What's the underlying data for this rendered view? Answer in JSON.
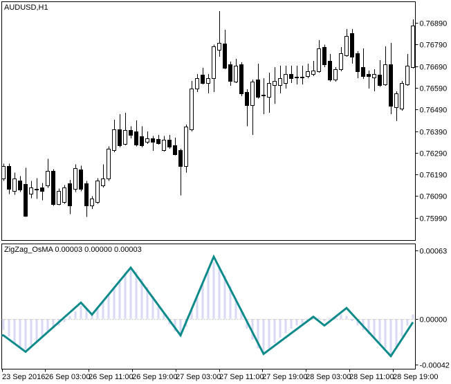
{
  "window": {
    "symbol_label": "AUDUSD,H1",
    "indicator_label": "ZigZag_OsMA 0.00003 0.00000 0.00003"
  },
  "colors": {
    "background": "#ffffff",
    "pane_border": "#000000",
    "bull_candle_fill": "#ffffff",
    "bear_candle_fill": "#000000",
    "candle_outline": "#000000",
    "wick": "#000000",
    "zigzag_line": "#0d8a8a",
    "histogram_bar": "#d8daf3",
    "zero_dashed_line": "#c6c6c6",
    "axis_text": "#000000"
  },
  "chart_data": [
    {
      "type": "candlestick",
      "title": "AUDUSD,H1",
      "symbol": "AUDUSD",
      "timeframe": "H1",
      "legend_position": "top-left",
      "grid": false,
      "y_axis_side": "right",
      "y_ticks": [
        "0.76890",
        "0.76790",
        "0.76690",
        "0.76590",
        "0.76490",
        "0.76390",
        "0.76290",
        "0.76190",
        "0.76090",
        "0.75990"
      ],
      "ylim": [
        0.75885,
        0.76988
      ],
      "x_tick_labels": [
        "23 Sep 2016",
        "26 Sep 03:00",
        "26 Sep 11:00",
        "26 Sep 19:00",
        "27 Sep 03:00",
        "27 Sep 11:00",
        "27 Sep 19:00",
        "28 Sep 03:00",
        "28 Sep 11:00",
        "28 Sep 19:00"
      ],
      "candles_ohlc": [
        [
          0.76172,
          0.7624,
          0.7616,
          0.7623
        ],
        [
          0.7623,
          0.7624,
          0.761,
          0.76124
        ],
        [
          0.76112,
          0.76198,
          0.76096,
          0.76172
        ],
        [
          0.7616,
          0.76182,
          0.76109,
          0.76121
        ],
        [
          0.76144,
          0.7622,
          0.75994,
          0.76
        ],
        [
          0.76102,
          0.7616,
          0.7608,
          0.76128
        ],
        [
          0.76121,
          0.76172,
          0.76077,
          0.76124
        ],
        [
          0.76128,
          0.7615,
          0.7607,
          0.76112
        ],
        [
          0.7614,
          0.76262,
          0.76128,
          0.76207
        ],
        [
          0.76207,
          0.76214,
          0.76045,
          0.76054
        ],
        [
          0.76054,
          0.76124,
          0.76048,
          0.76112
        ],
        [
          0.76061,
          0.7614,
          0.76054,
          0.76128
        ],
        [
          0.7615,
          0.76165,
          0.76006,
          0.76048
        ],
        [
          0.76124,
          0.76236,
          0.76109,
          0.7622
        ],
        [
          0.76214,
          0.7623,
          0.76112,
          0.76124
        ],
        [
          0.7615,
          0.7616,
          0.75994,
          0.76045
        ],
        [
          0.76048,
          0.7609,
          0.7603,
          0.76077
        ],
        [
          0.76064,
          0.76172,
          0.76054,
          0.7616
        ],
        [
          0.7614,
          0.76236,
          0.7613,
          0.76172
        ],
        [
          0.76172,
          0.7632,
          0.7616,
          0.76309
        ],
        [
          0.76303,
          0.76443,
          0.76293,
          0.76399
        ],
        [
          0.76399,
          0.76469,
          0.76315,
          0.76325
        ],
        [
          0.76331,
          0.76475,
          0.76325,
          0.76396
        ],
        [
          0.76396,
          0.76412,
          0.76357,
          0.76373
        ],
        [
          0.76389,
          0.7644,
          0.7632,
          0.76328
        ],
        [
          0.76367,
          0.76412,
          0.76315,
          0.76325
        ],
        [
          0.76341,
          0.76389,
          0.76331,
          0.76357
        ],
        [
          0.76357,
          0.76367,
          0.76299,
          0.76341
        ],
        [
          0.76354,
          0.76373,
          0.76328,
          0.76335
        ],
        [
          0.76303,
          0.76367,
          0.76296,
          0.76351
        ],
        [
          0.76351,
          0.76373,
          0.76309,
          0.76318
        ],
        [
          0.76325,
          0.7636,
          0.76278,
          0.76284
        ],
        [
          0.76303,
          0.76309,
          0.76093,
          0.7623
        ],
        [
          0.7623,
          0.76421,
          0.76198,
          0.76412
        ],
        [
          0.76399,
          0.76622,
          0.76389,
          0.76587
        ],
        [
          0.76587,
          0.76654,
          0.76571,
          0.76635
        ],
        [
          0.76651,
          0.76683,
          0.76606,
          0.76612
        ],
        [
          0.76612,
          0.76654,
          0.76565,
          0.76635
        ],
        [
          0.76635,
          0.7679,
          0.76571,
          0.76782
        ],
        [
          0.76766,
          0.76945,
          0.76734,
          0.76797
        ],
        [
          0.76794,
          0.76858,
          0.76676,
          0.76683
        ],
        [
          0.76698,
          0.76712,
          0.766,
          0.76622
        ],
        [
          0.76619,
          0.76724,
          0.76612,
          0.76692
        ],
        [
          0.76698,
          0.76708,
          0.76552,
          0.76565
        ],
        [
          0.76571,
          0.76584,
          0.76412,
          0.7651
        ],
        [
          0.7651,
          0.76628,
          0.76373,
          0.76619
        ],
        [
          0.76628,
          0.76702,
          0.7654,
          0.76549
        ],
        [
          0.76555,
          0.76635,
          0.76469,
          0.76558
        ],
        [
          0.76549,
          0.7666,
          0.76475,
          0.76612
        ],
        [
          0.76603,
          0.76686,
          0.76516,
          0.76622
        ],
        [
          0.76603,
          0.76692,
          0.76565,
          0.76635
        ],
        [
          0.76612,
          0.76692,
          0.76587,
          0.76654
        ],
        [
          0.76654,
          0.76692,
          0.76612,
          0.76635
        ],
        [
          0.76641,
          0.76692,
          0.76606,
          0.76638
        ],
        [
          0.76638,
          0.76692,
          0.76606,
          0.76641
        ],
        [
          0.76644,
          0.76702,
          0.76635,
          0.76667
        ],
        [
          0.76654,
          0.76715,
          0.76644,
          0.7667
        ],
        [
          0.76667,
          0.7681,
          0.7666,
          0.76772
        ],
        [
          0.76778,
          0.7679,
          0.76686,
          0.76698
        ],
        [
          0.76715,
          0.76746,
          0.76619,
          0.76628
        ],
        [
          0.76628,
          0.76686,
          0.76619,
          0.76676
        ],
        [
          0.76676,
          0.76778,
          0.76667,
          0.7675
        ],
        [
          0.7674,
          0.76861,
          0.76734,
          0.76829
        ],
        [
          0.76842,
          0.76861,
          0.76702,
          0.76734
        ],
        [
          0.7675,
          0.7676,
          0.76635,
          0.76667
        ],
        [
          0.76686,
          0.76772,
          0.76632,
          0.76644
        ],
        [
          0.76654,
          0.7667,
          0.76587,
          0.76644
        ],
        [
          0.76638,
          0.76676,
          0.76574,
          0.76654
        ],
        [
          0.76651,
          0.76718,
          0.76594,
          0.76603
        ],
        [
          0.76606,
          0.76782,
          0.766,
          0.76698
        ],
        [
          0.76698,
          0.76797,
          0.76469,
          0.76507
        ],
        [
          0.76501,
          0.76574,
          0.76437,
          0.76565
        ],
        [
          0.76494,
          0.76622,
          0.76484,
          0.76612
        ],
        [
          0.76606,
          0.76746,
          0.766,
          0.76692
        ],
        [
          0.76686,
          0.76906,
          0.7668,
          0.76877
        ]
      ]
    },
    {
      "type": "indicator_histogram_with_zigzag_line",
      "title": "ZigZag_OsMA 0.00003 0.00000 0.00003",
      "indicator_name": "ZigZag_OsMA",
      "indicator_values": [
        "0.00003",
        "0.00000",
        "0.00003"
      ],
      "legend_position": "top-left",
      "y_axis_side": "right",
      "y_ticks": [
        "0.00063",
        "0.00000",
        "-0.00042"
      ],
      "ylim": [
        -0.000459,
        0.000687
      ],
      "zero_line_value": 0,
      "histogram": [
        -0.0001,
        -0.00016,
        -0.00022,
        -0.00026,
        -0.00028,
        -0.00024,
        -0.0002,
        -0.00016,
        -0.00012,
        -9e-05,
        -6e-05,
        -3e-05,
        3e-05,
        7e-05,
        0.00012,
        9e-05,
        5e-05,
        0.0001,
        0.00016,
        0.00022,
        0.00029,
        0.00036,
        0.00042,
        0.00046,
        0.00043,
        0.00037,
        0.00029,
        0.00021,
        0.00013,
        5e-05,
        -5e-05,
        -0.00011,
        -0.00014,
        -7e-05,
        0.0001,
        0.00022,
        0.00034,
        0.00044,
        0.00052,
        0.00048,
        0.0004,
        0.0003,
        0.00019,
        8e-05,
        -9e-05,
        -0.00019,
        -0.00027,
        -0.00031,
        -0.00027,
        -0.00022,
        -0.00017,
        -0.00013,
        -9e-05,
        -6e-05,
        -4e-05,
        -2e-05,
        2e-05,
        1e-05,
        -2e-05,
        1e-05,
        3e-05,
        4e-05,
        3e-05,
        -2e-05,
        -6e-05,
        -0.0001,
        -0.00014,
        -0.00018,
        -0.00023,
        -0.00027,
        -0.00033,
        -0.00026,
        -0.00016,
        -6e-05,
        4e-05
      ],
      "zigzag_points": [
        [
          0,
          -0.00015
        ],
        [
          4,
          -0.0003
        ],
        [
          14,
          0.00015
        ],
        [
          16,
          4e-05
        ],
        [
          23,
          0.00047
        ],
        [
          32,
          -0.00015
        ],
        [
          38,
          0.00057
        ],
        [
          47,
          -0.00032
        ],
        [
          56,
          2e-05
        ],
        [
          58,
          -6e-05
        ],
        [
          62,
          0.0001
        ],
        [
          70,
          -0.00034
        ],
        [
          74,
          -3e-05
        ]
      ]
    }
  ]
}
